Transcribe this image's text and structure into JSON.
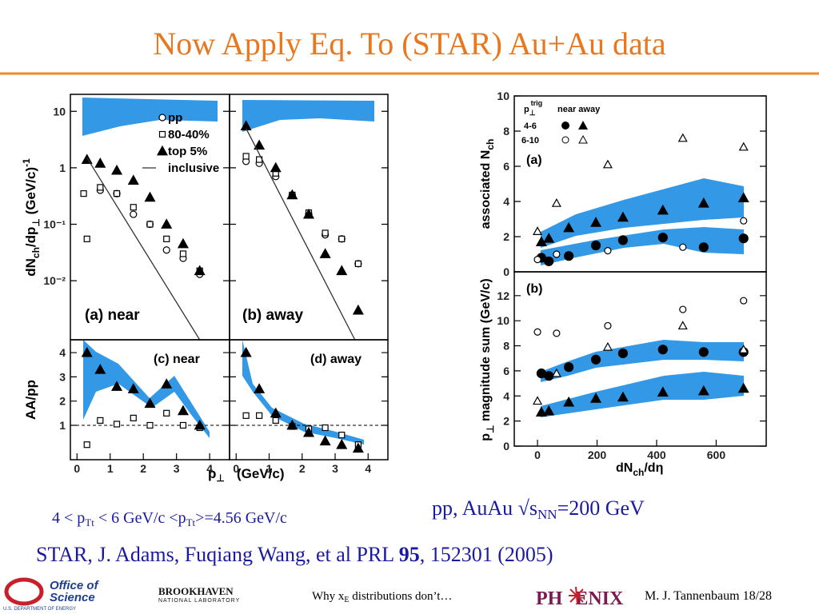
{
  "title": "Now Apply Eq. To (STAR) Au+Au data",
  "condition": [
    "4 < p",
    "Tt",
    " < 6 GeV/c <p",
    "Tt",
    ">=4.56 GeV/c"
  ],
  "energy": [
    "pp,  AuAu √s",
    "NN",
    "=200 GeV"
  ],
  "reference": [
    "STAR, J. Adams, Fuqiang Wang, et al  PRL ",
    "95",
    ", 152301 (2005)"
  ],
  "footer": {
    "office": [
      "Office of",
      "Science",
      "U.S. DEPARTMENT OF ENERGY"
    ],
    "bnl": [
      "BROOKHAVEN",
      "NATIONAL LABORATORY"
    ],
    "talk": [
      "Why x",
      "E",
      " distributions don’t…"
    ],
    "phenix": [
      "PH",
      "ENIX"
    ],
    "author": "M. J. Tannenbaum   18/28"
  },
  "chart_data": [
    {
      "type": "scatter",
      "log_y": true,
      "xlim": [
        -0.2,
        4.6
      ],
      "ylim": [
        0.0009,
        20
      ],
      "yticks": [
        10,
        1,
        {
          "value": 0.1,
          "label": "10⁻¹"
        },
        {
          "value": 0.01,
          "label": "10⁻²"
        }
      ],
      "ylabel": [
        "dN",
        "ch",
        "/dp",
        "⊥",
        "   (GeV/c)",
        "-1"
      ],
      "panel_label": "(a) near",
      "series": [
        {
          "name": "pp",
          "marker": "circle-open",
          "x": [
            0.7,
            1.2,
            1.7,
            2.2,
            2.7,
            3.2,
            3.7
          ],
          "values": [
            0.4,
            0.35,
            0.15,
            0.1,
            0.035,
            0.025,
            0.013
          ]
        },
        {
          "name": "80-40%",
          "marker": "square-open",
          "x": [
            0.2,
            0.3,
            0.7,
            1.2,
            1.7,
            2.2,
            2.7,
            3.2,
            3.7
          ],
          "values": [
            0.35,
            0.055,
            0.45,
            0.35,
            0.2,
            0.1,
            0.055,
            0.03,
            0.015
          ]
        },
        {
          "name": "top 5%",
          "marker": "triangle-filled",
          "x": [
            0.3,
            0.7,
            1.2,
            1.7,
            2.2,
            2.7,
            3.2,
            3.7
          ],
          "values": [
            1.4,
            1.2,
            0.9,
            0.6,
            0.3,
            0.1,
            0.045,
            0.015
          ]
        },
        {
          "name": "inclusive",
          "marker": "line",
          "x": [
            0.3,
            3.7
          ],
          "values": [
            1.5,
            0.0009
          ]
        }
      ]
    },
    {
      "type": "scatter",
      "log_y": true,
      "xlim": [
        -0.2,
        4.6
      ],
      "ylim": [
        0.0009,
        20
      ],
      "yticks": [
        10,
        1,
        0.1,
        0.01
      ],
      "panel_label": "(b) away",
      "series": [
        {
          "marker": "circle-open",
          "x": [
            0.3,
            0.7,
            1.2,
            1.7,
            2.2,
            2.7,
            3.2,
            3.7
          ],
          "values": [
            1.3,
            1.2,
            0.7,
            0.33,
            0.15,
            0.065,
            0.055,
            0.02
          ]
        },
        {
          "marker": "square-open",
          "x": [
            0.3,
            0.7,
            1.2,
            1.7,
            2.2,
            2.7,
            3.2,
            3.7
          ],
          "values": [
            1.6,
            1.4,
            0.8,
            0.33,
            0.16,
            0.07,
            0.055,
            0.02
          ]
        },
        {
          "marker": "triangle-filled",
          "x": [
            0.3,
            0.7,
            1.2,
            1.7,
            2.2,
            2.7,
            3.2,
            3.7
          ],
          "values": [
            5.5,
            2.5,
            1.0,
            0.33,
            0.15,
            0.03,
            0.015,
            0.003
          ]
        },
        {
          "marker": "line",
          "x": [
            0.3,
            3.6
          ],
          "values": [
            5,
            0.0009
          ]
        }
      ]
    },
    {
      "type": "scatter",
      "xlim": [
        -0.2,
        4.6
      ],
      "ylim": [
        -0.42,
        4.53
      ],
      "yticks": [
        1,
        2,
        3,
        4
      ],
      "xticks": [
        0,
        1,
        2,
        3,
        4
      ],
      "hline": 1,
      "ylabel": [
        "AA/pp"
      ],
      "xlabel": [
        "p",
        "⊥"
      ],
      "panel_label": "(c) near",
      "series": [
        {
          "marker": "square-open",
          "x": [
            0.3,
            0.7,
            1.2,
            1.7,
            2.2,
            2.7,
            3.2,
            3.7
          ],
          "values": [
            0.2,
            1.2,
            1.05,
            1.3,
            1.0,
            1.5,
            1.0,
            0.9
          ]
        },
        {
          "marker": "triangle-filled",
          "x": [
            0.3,
            0.7,
            1.2,
            1.7,
            2.2,
            2.7,
            3.2,
            3.7
          ],
          "values": [
            4.0,
            3.3,
            2.6,
            2.5,
            1.9,
            2.7,
            1.6,
            1.0
          ]
        }
      ]
    },
    {
      "type": "scatter",
      "xlim": [
        -0.2,
        4.6
      ],
      "ylim": [
        -0.42,
        4.53
      ],
      "yticks": [
        1,
        2,
        3,
        4
      ],
      "xticks": [
        0,
        1,
        2,
        3,
        4
      ],
      "hline": 1,
      "xlabel": [
        "(GeV/c)"
      ],
      "panel_label": "(d) away",
      "series": [
        {
          "marker": "square-open",
          "x": [
            0.3,
            0.7,
            1.2,
            1.7,
            2.2,
            2.7,
            3.2,
            3.7
          ],
          "values": [
            1.4,
            1.4,
            1.2,
            0.95,
            0.85,
            0.9,
            0.6,
            0.2
          ]
        },
        {
          "marker": "triangle-filled",
          "x": [
            0.3,
            0.7,
            1.2,
            1.7,
            2.2,
            2.7,
            3.2,
            3.7
          ],
          "values": [
            4.0,
            2.5,
            1.5,
            1.0,
            0.7,
            0.35,
            0.2,
            0.05
          ]
        }
      ]
    },
    {
      "type": "scatter",
      "xlim": [
        -78,
        768
      ],
      "ylim": [
        0,
        10
      ],
      "yticks": [
        0,
        2,
        4,
        6,
        8,
        10
      ],
      "ylabel": [
        "associated N",
        "ch"
      ],
      "panel_label": "(a)",
      "legend": {
        "header": [
          "p",
          "⊥",
          "trig",
          "near away"
        ],
        "rows": [
          "4-6",
          "6-10"
        ]
      },
      "series": [
        {
          "marker": "circle-filled",
          "x": [
            13,
            38,
            105,
            196,
            287,
            421,
            558,
            692
          ],
          "values": [
            0.8,
            0.6,
            0.9,
            1.5,
            1.8,
            1.95,
            1.4,
            1.9
          ]
        },
        {
          "marker": "triangle-filled",
          "x": [
            13,
            38,
            105,
            196,
            287,
            421,
            558,
            692
          ],
          "values": [
            1.7,
            1.9,
            2.5,
            2.8,
            3.1,
            3.5,
            3.9,
            4.2
          ]
        },
        {
          "marker": "circle-open",
          "x": [
            0,
            64,
            236,
            488,
            692
          ],
          "values": [
            0.7,
            1.0,
            1.2,
            1.4,
            2.9
          ]
        },
        {
          "marker": "triangle-open",
          "x": [
            0,
            64,
            236,
            488,
            692
          ],
          "values": [
            2.3,
            3.9,
            6.1,
            7.6,
            7.1
          ]
        }
      ]
    },
    {
      "type": "scatter",
      "xlim": [
        -78,
        768
      ],
      "ylim": [
        0,
        13.9
      ],
      "yticks": [
        0,
        2,
        4,
        6,
        8,
        10,
        12
      ],
      "xticks": [
        0,
        200,
        400,
        600
      ],
      "ylabel": [
        "p",
        "⊥",
        " magnitude sum (GeV/c)"
      ],
      "xlabel": [
        "dN",
        "ch",
        "/dη"
      ],
      "panel_label": "(b)",
      "series": [
        {
          "marker": "circle-filled",
          "x": [
            13,
            38,
            105,
            196,
            287,
            421,
            558,
            692
          ],
          "values": [
            5.8,
            5.6,
            6.3,
            6.9,
            7.4,
            7.7,
            7.5,
            7.5
          ]
        },
        {
          "marker": "triangle-filled",
          "x": [
            13,
            38,
            105,
            196,
            287,
            421,
            558,
            692
          ],
          "values": [
            2.7,
            2.8,
            3.5,
            3.8,
            3.9,
            4.3,
            4.4,
            4.6
          ]
        },
        {
          "marker": "circle-open",
          "x": [
            0,
            64,
            236,
            488,
            692
          ],
          "values": [
            9.1,
            9.0,
            9.6,
            10.9,
            11.6
          ]
        },
        {
          "marker": "triangle-open",
          "x": [
            0,
            64,
            236,
            488,
            692
          ],
          "values": [
            3.6,
            5.8,
            7.9,
            9.6,
            7.7
          ]
        }
      ]
    }
  ]
}
